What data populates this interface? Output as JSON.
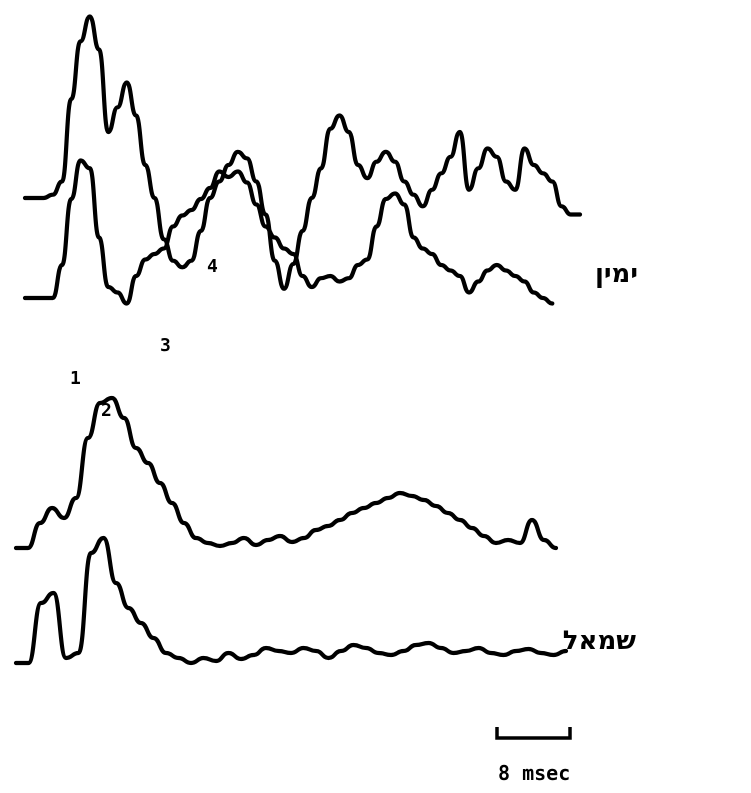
{
  "chart_data": {
    "type": "line",
    "side_labels": [
      {
        "id": "right",
        "text": "ימין"
      },
      {
        "id": "left",
        "text": "שמאל"
      }
    ],
    "peak_labels": [
      "1",
      "2",
      "3",
      "4"
    ],
    "scale_bar": {
      "text": "8 msec",
      "duration_ms": 8
    },
    "series": [
      {
        "group": "right",
        "points": [
          [
            0,
            0
          ],
          [
            2,
            0
          ],
          [
            3,
            -2
          ],
          [
            4,
            -10
          ],
          [
            5,
            -60
          ],
          [
            6,
            -95
          ],
          [
            7,
            -110
          ],
          [
            8,
            -90
          ],
          [
            9,
            -40
          ],
          [
            10,
            -55
          ],
          [
            11,
            -70
          ],
          [
            12,
            -50
          ],
          [
            13,
            -20
          ],
          [
            14,
            0
          ],
          [
            15,
            25
          ],
          [
            16,
            38
          ],
          [
            17,
            42
          ],
          [
            18,
            38
          ],
          [
            19,
            20
          ],
          [
            20,
            0
          ],
          [
            21,
            -10
          ],
          [
            22,
            -20
          ],
          [
            23,
            -28
          ],
          [
            24,
            -24
          ],
          [
            25,
            -10
          ],
          [
            26,
            10
          ],
          [
            27,
            38
          ],
          [
            28,
            55
          ],
          [
            29,
            40
          ],
          [
            30,
            20
          ],
          [
            31,
            0
          ],
          [
            32,
            -18
          ],
          [
            33,
            -42
          ],
          [
            34,
            -50
          ],
          [
            35,
            -40
          ],
          [
            36,
            -20
          ],
          [
            37,
            -12
          ],
          [
            38,
            -22
          ],
          [
            39,
            -28
          ],
          [
            40,
            -22
          ],
          [
            41,
            -10
          ],
          [
            42,
            -2
          ],
          [
            43,
            5
          ],
          [
            44,
            -5
          ],
          [
            45,
            -15
          ],
          [
            46,
            -25
          ],
          [
            47,
            -40
          ],
          [
            48,
            -5
          ],
          [
            49,
            -18
          ],
          [
            50,
            -30
          ],
          [
            51,
            -25
          ],
          [
            52,
            -10
          ],
          [
            53,
            -5
          ],
          [
            54,
            -30
          ],
          [
            55,
            -20
          ],
          [
            56,
            -15
          ],
          [
            57,
            -10
          ],
          [
            58,
            5
          ],
          [
            59,
            10
          ],
          [
            60,
            10
          ]
        ]
      },
      {
        "group": "right",
        "points": [
          [
            0,
            0
          ],
          [
            3,
            0
          ],
          [
            4,
            -30
          ],
          [
            5,
            -90
          ],
          [
            6,
            -125
          ],
          [
            7,
            -118
          ],
          [
            8,
            -55
          ],
          [
            9,
            -10
          ],
          [
            10,
            -5
          ],
          [
            11,
            5
          ],
          [
            12,
            -20
          ],
          [
            13,
            -35
          ],
          [
            14,
            -40
          ],
          [
            15,
            -45
          ],
          [
            16,
            -65
          ],
          [
            17,
            -75
          ],
          [
            18,
            -80
          ],
          [
            19,
            -90
          ],
          [
            20,
            -100
          ],
          [
            21,
            -115
          ],
          [
            22,
            -110
          ],
          [
            23,
            -115
          ],
          [
            24,
            -105
          ],
          [
            25,
            -85
          ],
          [
            26,
            -65
          ],
          [
            27,
            -55
          ],
          [
            28,
            -45
          ],
          [
            29,
            -40
          ],
          [
            30,
            -20
          ],
          [
            31,
            -10
          ],
          [
            32,
            -18
          ],
          [
            33,
            -20
          ],
          [
            34,
            -15
          ],
          [
            35,
            -18
          ],
          [
            36,
            -30
          ],
          [
            37,
            -35
          ],
          [
            38,
            -65
          ],
          [
            39,
            -90
          ],
          [
            40,
            -95
          ],
          [
            41,
            -85
          ],
          [
            42,
            -55
          ],
          [
            43,
            -45
          ],
          [
            44,
            -40
          ],
          [
            45,
            -30
          ],
          [
            46,
            -25
          ],
          [
            47,
            -20
          ],
          [
            48,
            -5
          ],
          [
            49,
            -15
          ],
          [
            50,
            -25
          ],
          [
            51,
            -30
          ],
          [
            52,
            -25
          ],
          [
            53,
            -20
          ],
          [
            54,
            -15
          ],
          [
            55,
            -5
          ],
          [
            56,
            0
          ],
          [
            57,
            5
          ]
        ]
      },
      {
        "group": "left",
        "points": [
          [
            0,
            0
          ],
          [
            1,
            0
          ],
          [
            2,
            -25
          ],
          [
            3,
            -40
          ],
          [
            4,
            -30
          ],
          [
            5,
            -50
          ],
          [
            6,
            -110
          ],
          [
            7,
            -145
          ],
          [
            8,
            -150
          ],
          [
            9,
            -130
          ],
          [
            10,
            -100
          ],
          [
            11,
            -85
          ],
          [
            12,
            -65
          ],
          [
            13,
            -45
          ],
          [
            14,
            -25
          ],
          [
            15,
            -10
          ],
          [
            16,
            -5
          ],
          [
            17,
            -2
          ],
          [
            18,
            -5
          ],
          [
            19,
            -10
          ],
          [
            20,
            -3
          ],
          [
            21,
            -8
          ],
          [
            22,
            -12
          ],
          [
            23,
            -6
          ],
          [
            24,
            -10
          ],
          [
            25,
            -18
          ],
          [
            26,
            -22
          ],
          [
            27,
            -28
          ],
          [
            28,
            -35
          ],
          [
            29,
            -40
          ],
          [
            30,
            -45
          ],
          [
            31,
            -50
          ],
          [
            32,
            -55
          ],
          [
            33,
            -52
          ],
          [
            34,
            -48
          ],
          [
            35,
            -42
          ],
          [
            36,
            -35
          ],
          [
            37,
            -28
          ],
          [
            38,
            -20
          ],
          [
            39,
            -12
          ],
          [
            40,
            -5
          ],
          [
            41,
            -8
          ],
          [
            42,
            -5
          ],
          [
            43,
            -28
          ],
          [
            44,
            -8
          ],
          [
            45,
            0
          ]
        ]
      },
      {
        "group": "left",
        "points": [
          [
            0,
            0
          ],
          [
            1,
            0
          ],
          [
            2,
            -60
          ],
          [
            3,
            -70
          ],
          [
            4,
            -5
          ],
          [
            5,
            -10
          ],
          [
            6,
            -110
          ],
          [
            7,
            -125
          ],
          [
            8,
            -80
          ],
          [
            9,
            -55
          ],
          [
            10,
            -40
          ],
          [
            11,
            -25
          ],
          [
            12,
            -10
          ],
          [
            13,
            -5
          ],
          [
            14,
            0
          ],
          [
            15,
            -5
          ],
          [
            16,
            -2
          ],
          [
            17,
            -10
          ],
          [
            18,
            -4
          ],
          [
            19,
            -8
          ],
          [
            20,
            -15
          ],
          [
            21,
            -12
          ],
          [
            22,
            -10
          ],
          [
            23,
            -15
          ],
          [
            24,
            -12
          ],
          [
            25,
            -5
          ],
          [
            26,
            -12
          ],
          [
            27,
            -18
          ],
          [
            28,
            -15
          ],
          [
            29,
            -10
          ],
          [
            30,
            -8
          ],
          [
            31,
            -12
          ],
          [
            32,
            -18
          ],
          [
            33,
            -20
          ],
          [
            34,
            -15
          ],
          [
            35,
            -10
          ],
          [
            36,
            -12
          ],
          [
            37,
            -15
          ],
          [
            38,
            -10
          ],
          [
            39,
            -8
          ],
          [
            40,
            -12
          ],
          [
            41,
            -14
          ],
          [
            42,
            -10
          ],
          [
            43,
            -8
          ],
          [
            44,
            -12
          ]
        ]
      }
    ]
  }
}
